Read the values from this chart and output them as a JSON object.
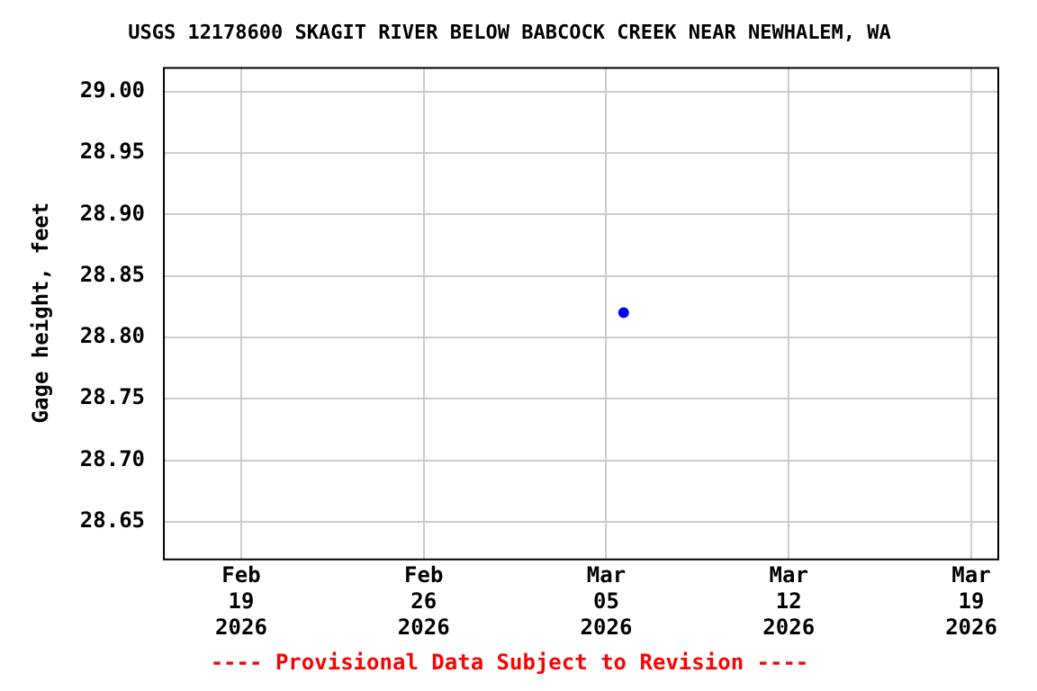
{
  "chart_data": {
    "type": "scatter",
    "title": "USGS 12178600 SKAGIT RIVER BELOW BABCOCK CREEK NEAR NEWHALEM, WA",
    "ylabel": "Gage height, feet",
    "annotations": [
      "---- Provisional Data Subject to Revision ----"
    ],
    "xlim": [
      "2026-02-16",
      "2026-03-20"
    ],
    "xticks": [
      {
        "value": "2026-02-19",
        "label": "Feb\n19\n2026"
      },
      {
        "value": "2026-02-26",
        "label": "Feb\n26\n2026"
      },
      {
        "value": "2026-03-05",
        "label": "Mar\n05\n2026"
      },
      {
        "value": "2026-03-12",
        "label": "Mar\n12\n2026"
      },
      {
        "value": "2026-03-19",
        "label": "Mar\n19\n2026"
      }
    ],
    "ylim": [
      28.62,
      29.02
    ],
    "yticks": [
      {
        "value": 28.65,
        "label": "28.65"
      },
      {
        "value": 28.7,
        "label": "28.70"
      },
      {
        "value": 28.75,
        "label": "28.75"
      },
      {
        "value": 28.8,
        "label": "28.80"
      },
      {
        "value": 28.85,
        "label": "28.85"
      },
      {
        "value": 28.9,
        "label": "28.90"
      },
      {
        "value": 28.95,
        "label": "28.95"
      },
      {
        "value": 29.0,
        "label": "29.00"
      }
    ],
    "series": [
      {
        "color": "#0000ff",
        "x": [
          "2026-03-05T16:00"
        ],
        "values": [
          28.82
        ]
      }
    ],
    "grid": true,
    "legend": false,
    "marker": "circle"
  }
}
